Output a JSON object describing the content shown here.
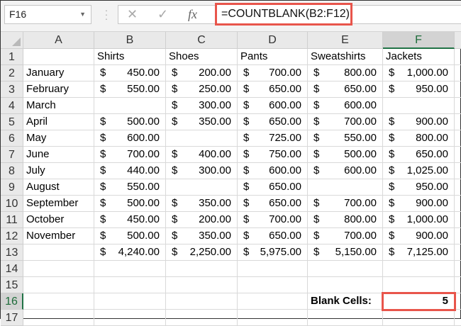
{
  "formula_bar": {
    "name_box": "F16",
    "cancel_icon": "✕",
    "enter_icon": "✓",
    "fx_label": "fx",
    "formula": "=COUNTBLANK(B2:F12)"
  },
  "selected": {
    "column": "F",
    "row": 16
  },
  "accent_color": "#e8554b",
  "columns": [
    "A",
    "B",
    "C",
    "D",
    "E",
    "F"
  ],
  "row_numbers": [
    1,
    2,
    3,
    4,
    5,
    6,
    7,
    8,
    9,
    10,
    11,
    12,
    13,
    14,
    15,
    16,
    17
  ],
  "headers": [
    "",
    "Shirts",
    "Shoes",
    "Pants",
    "Sweatshirts",
    "Jackets"
  ],
  "rows": [
    [
      "January",
      "450.00",
      "200.00",
      "700.00",
      "800.00",
      "1,000.00"
    ],
    [
      "February",
      "550.00",
      "250.00",
      "650.00",
      "650.00",
      "950.00"
    ],
    [
      "March",
      "",
      "300.00",
      "600.00",
      "600.00",
      ""
    ],
    [
      "April",
      "500.00",
      "350.00",
      "650.00",
      "700.00",
      "900.00"
    ],
    [
      "May",
      "600.00",
      "",
      "725.00",
      "550.00",
      "800.00"
    ],
    [
      "June",
      "700.00",
      "400.00",
      "750.00",
      "500.00",
      "650.00"
    ],
    [
      "July",
      "440.00",
      "300.00",
      "600.00",
      "600.00",
      "1,025.00"
    ],
    [
      "August",
      "550.00",
      "",
      "650.00",
      "",
      "950.00"
    ],
    [
      "September",
      "500.00",
      "350.00",
      "650.00",
      "700.00",
      "900.00"
    ],
    [
      "October",
      "450.00",
      "200.00",
      "700.00",
      "800.00",
      "1,000.00"
    ],
    [
      "November",
      "500.00",
      "350.00",
      "650.00",
      "700.00",
      "900.00"
    ]
  ],
  "totals": [
    "",
    "4,240.00",
    "2,250.00",
    "5,975.00",
    "5,150.00",
    "7,125.00"
  ],
  "currency_symbol": "$",
  "blank_cells": {
    "label": "Blank Cells:",
    "value": "5"
  }
}
